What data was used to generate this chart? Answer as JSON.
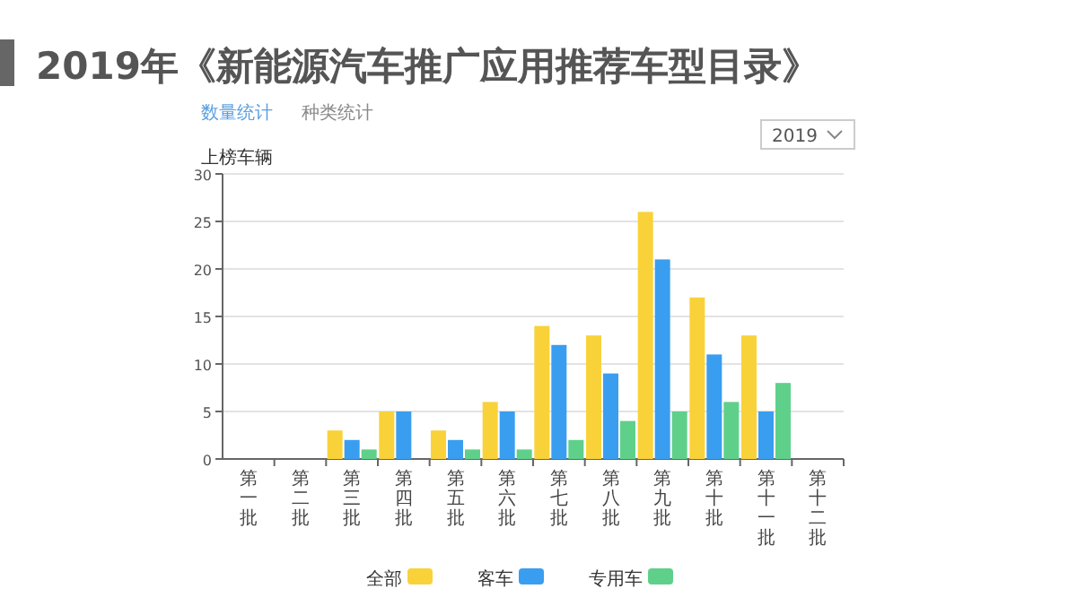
{
  "chart_data": {
    "type": "bar",
    "title": "2019年《新能源汽车推广应用推荐车型目录》",
    "ylabel": "上榜车辆",
    "annotations": [
      "数量统计",
      "种类统计",
      "2019"
    ],
    "categories": [
      "第一批",
      "第二批",
      "第三批",
      "第四批",
      "第五批",
      "第六批",
      "第七批",
      "第八批",
      "第九批",
      "第十批",
      "第十一批",
      "第十二批"
    ],
    "series": [
      {
        "name": "全部",
        "color": "#f9d23a",
        "values": [
          0,
          0,
          3,
          5,
          3,
          6,
          14,
          13,
          26,
          17,
          13,
          0
        ]
      },
      {
        "name": "客车",
        "color": "#3a9ef0",
        "values": [
          0,
          0,
          2,
          5,
          2,
          5,
          12,
          9,
          21,
          11,
          5,
          0
        ]
      },
      {
        "name": "专用车",
        "color": "#5fd08a",
        "values": [
          0,
          0,
          1,
          0,
          1,
          1,
          2,
          4,
          5,
          6,
          8,
          0
        ]
      }
    ],
    "ylim": [
      0,
      30
    ],
    "yticks": [
      0,
      5,
      10,
      15,
      20,
      25,
      30
    ],
    "grid": "y",
    "legend": "bottom"
  }
}
